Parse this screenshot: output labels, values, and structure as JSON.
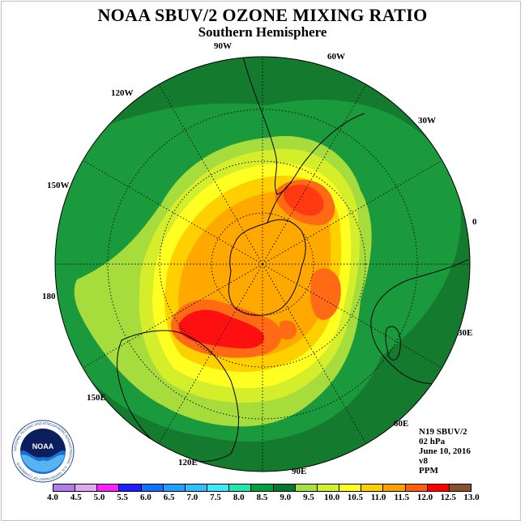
{
  "title": "NOAA SBUV/2 OZONE MIXING RATIO",
  "subtitle": "Southern Hemisphere",
  "longitude_labels": [
    "90W",
    "60W",
    "30W",
    "0",
    "30E",
    "60E",
    "90E",
    "120E",
    "150E",
    "180",
    "150W",
    "120W"
  ],
  "info": {
    "satellite": "N19 SBUV/2",
    "level": "02 hPa",
    "date": "June 10, 2016",
    "version": "v8",
    "units": "PPM"
  },
  "logo": {
    "name": "NOAA",
    "ring_text": "NATIONAL OCEANIC AND ATMOSPHERIC ADMINISTRATION · U.S. DEPARTMENT OF COMMERCE ·"
  },
  "colorbar": {
    "ticks": [
      "4.0",
      "4.5",
      "5.0",
      "5.5",
      "6.0",
      "6.5",
      "7.0",
      "7.5",
      "8.0",
      "8.5",
      "9.0",
      "9.5",
      "10.0",
      "10.5",
      "11.0",
      "11.5",
      "12.0",
      "12.5",
      "13.0"
    ],
    "colors": [
      "#b07ee8",
      "#e0a8f0",
      "#ff20ff",
      "#2020ff",
      "#1070ff",
      "#20a0ff",
      "#30c0ff",
      "#40e8ff",
      "#20e8b0",
      "#00a040",
      "#007830",
      "#a8e040",
      "#d0f030",
      "#ffff20",
      "#ffd000",
      "#ffa000",
      "#ff6010",
      "#ff0000",
      "#8a5030"
    ]
  },
  "map": {
    "projection": "polar-stereographic",
    "hemisphere": "south",
    "background_color": "#137a2e"
  }
}
